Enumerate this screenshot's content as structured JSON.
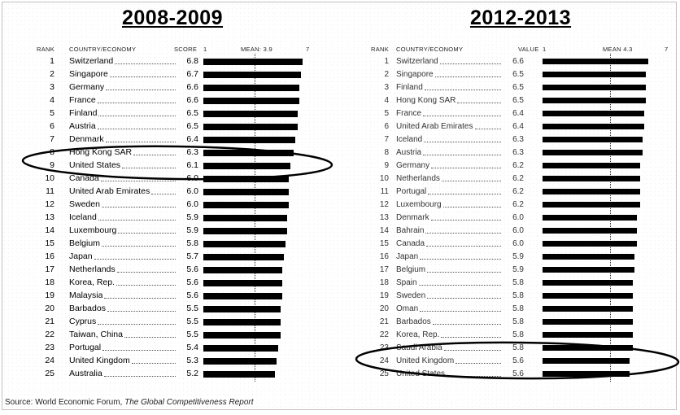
{
  "source": {
    "prefix": "Source: World Economic Forum, ",
    "title": "The Global Competitiveness Report"
  },
  "chart_data": [
    {
      "type": "bar",
      "title": "2008-2009",
      "headers": {
        "rank": "RANK",
        "country": "COUNTRY/ECONOMY",
        "value": "SCORE",
        "axis_min": "1",
        "mean": "MEAN: 3.9",
        "axis_max": "7"
      },
      "xlim": [
        1,
        7
      ],
      "mean": 3.9,
      "highlighted": [
        "United States"
      ],
      "ranks": [
        "1",
        "2",
        "3",
        "4",
        "5",
        "6",
        "7",
        "8",
        "9",
        "10",
        "11",
        "12",
        "13",
        "14",
        "15",
        "16",
        "17",
        "18",
        "19",
        "20",
        "21",
        "22",
        "23",
        "24",
        "25"
      ],
      "categories": [
        "Switzerland",
        "Singapore",
        "Germany",
        "France",
        "Finland",
        "Austria",
        "Denmark",
        "Hong Kong SAR",
        "United States",
        "Canada",
        "United Arab Emirates",
        "Sweden",
        "Iceland",
        "Luxembourg",
        "Belgium",
        "Japan",
        "Netherlands",
        "Korea, Rep.",
        "Malaysia",
        "Barbados",
        "Cyprus",
        "Taiwan, China",
        "Portugal",
        "United Kingdom",
        "Australia"
      ],
      "labels": [
        "6.8",
        "6.7",
        "6.6",
        "6.6",
        "6.5",
        "6.5",
        "6.4",
        "6.3",
        "6.1",
        "6.0",
        "6.0",
        "6.0",
        "5.9",
        "5.9",
        "5.8",
        "5.7",
        "5.6",
        "5.6",
        "5.6",
        "5.5",
        "5.5",
        "5.5",
        "5.4",
        "5.3",
        "5.2"
      ],
      "values": [
        6.8,
        6.7,
        6.6,
        6.6,
        6.5,
        6.5,
        6.4,
        6.3,
        6.1,
        6.0,
        6.0,
        6.0,
        5.9,
        5.9,
        5.8,
        5.7,
        5.6,
        5.6,
        5.6,
        5.5,
        5.5,
        5.5,
        5.4,
        5.3,
        5.2
      ]
    },
    {
      "type": "bar",
      "title": "2012-2013",
      "headers": {
        "rank": "RANK",
        "country": "COUNTRY/ECONOMY",
        "value": "VALUE",
        "axis_min": "1",
        "mean": "MEAN 4.3",
        "axis_max": "7"
      },
      "xlim": [
        1,
        7
      ],
      "mean": 4.3,
      "highlighted": [
        "United States"
      ],
      "ranks": [
        "1",
        "2",
        "3",
        "4",
        "5",
        "6",
        "7",
        "8",
        "9",
        "10",
        "11",
        "12",
        "13",
        "14",
        "15",
        "16",
        "17",
        "18",
        "19",
        "20",
        "21",
        "22",
        "23",
        "24",
        "25"
      ],
      "categories": [
        "Switzerland",
        "Singapore",
        "Finland",
        "Hong Kong SAR",
        "France",
        "United Arab Emirates",
        "Iceland",
        "Austria",
        "Germany",
        "Netherlands",
        "Portugal",
        "Luxembourg",
        "Denmark",
        "Bahrain",
        "Canada",
        "Japan",
        "Belgium",
        "Spain",
        "Sweden",
        "Oman",
        "Barbados",
        "Korea, Rep.",
        "Saudi Arabia",
        "United Kingdom",
        "United States"
      ],
      "labels": [
        "6.6",
        "6.5",
        "6.5",
        "6.5",
        "6.4",
        "6.4",
        "6.3",
        "6.3",
        "6.2",
        "6.2",
        "6.2",
        "6.2",
        "6.0",
        "6.0",
        "6.0",
        "5.9",
        "5.9",
        "5.8",
        "5.8",
        "5.8",
        "5.8",
        "5.8",
        "5.8",
        "5.6",
        "5.6"
      ],
      "values": [
        6.6,
        6.5,
        6.5,
        6.5,
        6.4,
        6.4,
        6.3,
        6.3,
        6.2,
        6.2,
        6.2,
        6.2,
        6.0,
        6.0,
        6.0,
        5.9,
        5.9,
        5.8,
        5.8,
        5.8,
        5.8,
        5.8,
        5.8,
        5.6,
        5.6
      ]
    }
  ]
}
